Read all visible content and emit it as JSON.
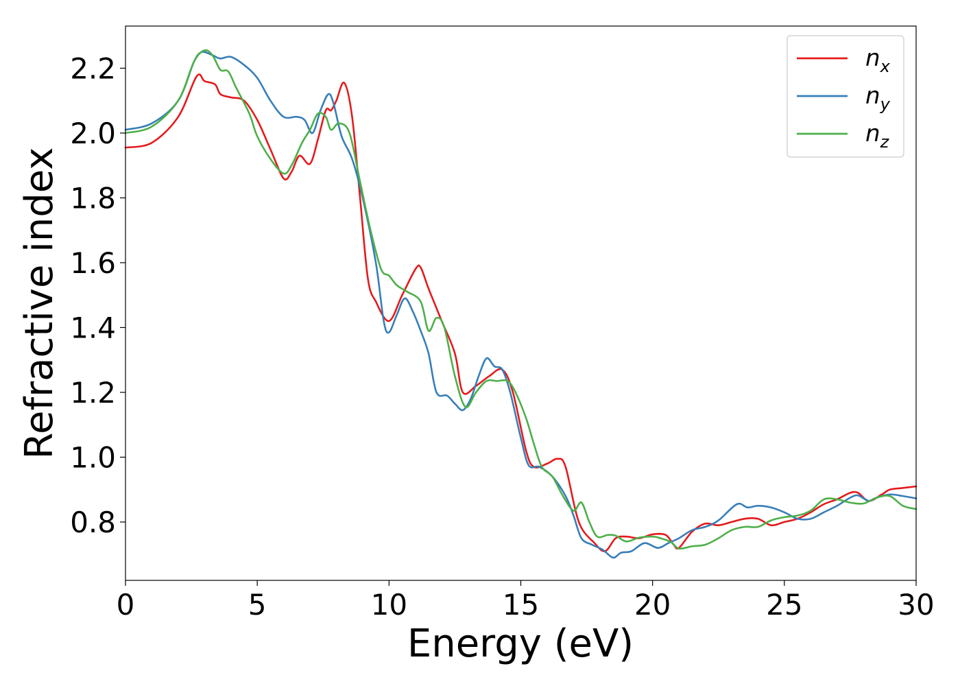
{
  "chart_data": {
    "type": "line",
    "title": "",
    "xlabel": "Energy (eV)",
    "ylabel": "Refractive index",
    "xlim": [
      0,
      30
    ],
    "ylim": [
      0.62,
      2.33
    ],
    "xticks": [
      "0",
      "5",
      "10",
      "15",
      "20",
      "25",
      "30"
    ],
    "yticks": [
      "0.8",
      "1.0",
      "1.2",
      "1.4",
      "1.6",
      "1.8",
      "2.0",
      "2.2"
    ],
    "grid": false,
    "legend_placement": "upper right",
    "series": [
      {
        "name": "n",
        "subscript": "x",
        "color": "#e41a1c",
        "points": [
          [
            0,
            1.955
          ],
          [
            1,
            1.97
          ],
          [
            2,
            2.05
          ],
          [
            2.7,
            2.175
          ],
          [
            3,
            2.16
          ],
          [
            3.4,
            2.15
          ],
          [
            3.6,
            2.12
          ],
          [
            4,
            2.11
          ],
          [
            4.5,
            2.1
          ],
          [
            5,
            2.04
          ],
          [
            5.5,
            1.95
          ],
          [
            6,
            1.86
          ],
          [
            6.3,
            1.88
          ],
          [
            6.6,
            1.93
          ],
          [
            7,
            1.905
          ],
          [
            7.3,
            1.98
          ],
          [
            7.6,
            2.07
          ],
          [
            7.8,
            2.07
          ],
          [
            8,
            2.1
          ],
          [
            8.3,
            2.155
          ],
          [
            8.6,
            2.05
          ],
          [
            8.9,
            1.8
          ],
          [
            9.2,
            1.55
          ],
          [
            9.5,
            1.48
          ],
          [
            10,
            1.42
          ],
          [
            10.5,
            1.5
          ],
          [
            11,
            1.58
          ],
          [
            11.2,
            1.585
          ],
          [
            11.5,
            1.52
          ],
          [
            12,
            1.42
          ],
          [
            12.5,
            1.32
          ],
          [
            12.8,
            1.2
          ],
          [
            13.3,
            1.22
          ],
          [
            13.8,
            1.25
          ],
          [
            14.3,
            1.27
          ],
          [
            14.7,
            1.2
          ],
          [
            15.2,
            1.02
          ],
          [
            15.5,
            0.97
          ],
          [
            16,
            0.98
          ],
          [
            16.4,
            0.995
          ],
          [
            16.7,
            0.97
          ],
          [
            17.2,
            0.8
          ],
          [
            17.8,
            0.735
          ],
          [
            18.2,
            0.71
          ],
          [
            18.6,
            0.75
          ],
          [
            19,
            0.755
          ],
          [
            19.5,
            0.75
          ],
          [
            20,
            0.762
          ],
          [
            20.5,
            0.76
          ],
          [
            20.8,
            0.73
          ],
          [
            21,
            0.72
          ],
          [
            21.5,
            0.77
          ],
          [
            22,
            0.795
          ],
          [
            22.5,
            0.79
          ],
          [
            23,
            0.8
          ],
          [
            23.5,
            0.81
          ],
          [
            24,
            0.81
          ],
          [
            24.5,
            0.79
          ],
          [
            25,
            0.8
          ],
          [
            25.5,
            0.81
          ],
          [
            26,
            0.83
          ],
          [
            26.5,
            0.855
          ],
          [
            27,
            0.87
          ],
          [
            27.5,
            0.89
          ],
          [
            27.8,
            0.89
          ],
          [
            28.2,
            0.865
          ],
          [
            28.7,
            0.885
          ],
          [
            29,
            0.9
          ],
          [
            29.5,
            0.905
          ],
          [
            30,
            0.91
          ]
        ]
      },
      {
        "name": "n",
        "subscript": "y",
        "color": "#377eb8",
        "points": [
          [
            0,
            2.01
          ],
          [
            1,
            2.03
          ],
          [
            2,
            2.1
          ],
          [
            2.6,
            2.22
          ],
          [
            2.9,
            2.25
          ],
          [
            3.3,
            2.24
          ],
          [
            3.6,
            2.23
          ],
          [
            4,
            2.235
          ],
          [
            4.5,
            2.21
          ],
          [
            5,
            2.17
          ],
          [
            5.5,
            2.1
          ],
          [
            6,
            2.05
          ],
          [
            6.5,
            2.05
          ],
          [
            6.8,
            2.04
          ],
          [
            7.1,
            2.0
          ],
          [
            7.4,
            2.07
          ],
          [
            7.7,
            2.12
          ],
          [
            7.9,
            2.09
          ],
          [
            8.2,
            1.99
          ],
          [
            8.6,
            1.92
          ],
          [
            9,
            1.8
          ],
          [
            9.5,
            1.6
          ],
          [
            9.8,
            1.42
          ],
          [
            10,
            1.385
          ],
          [
            10.3,
            1.44
          ],
          [
            10.6,
            1.49
          ],
          [
            10.9,
            1.45
          ],
          [
            11.2,
            1.39
          ],
          [
            11.5,
            1.32
          ],
          [
            11.8,
            1.2
          ],
          [
            12.2,
            1.19
          ],
          [
            12.5,
            1.165
          ],
          [
            12.8,
            1.145
          ],
          [
            13.1,
            1.18
          ],
          [
            13.4,
            1.25
          ],
          [
            13.7,
            1.305
          ],
          [
            14,
            1.28
          ],
          [
            14.3,
            1.27
          ],
          [
            14.6,
            1.2
          ],
          [
            15,
            1.06
          ],
          [
            15.3,
            0.975
          ],
          [
            15.7,
            0.97
          ],
          [
            16.2,
            0.94
          ],
          [
            16.7,
            0.88
          ],
          [
            17,
            0.82
          ],
          [
            17.3,
            0.75
          ],
          [
            17.7,
            0.73
          ],
          [
            18.1,
            0.715
          ],
          [
            18.5,
            0.69
          ],
          [
            18.8,
            0.705
          ],
          [
            19.2,
            0.71
          ],
          [
            19.7,
            0.735
          ],
          [
            20.2,
            0.72
          ],
          [
            20.6,
            0.735
          ],
          [
            21,
            0.75
          ],
          [
            21.5,
            0.775
          ],
          [
            22,
            0.785
          ],
          [
            22.5,
            0.805
          ],
          [
            23.2,
            0.855
          ],
          [
            23.6,
            0.845
          ],
          [
            24,
            0.85
          ],
          [
            24.5,
            0.845
          ],
          [
            25,
            0.83
          ],
          [
            25.5,
            0.81
          ],
          [
            26,
            0.81
          ],
          [
            26.5,
            0.83
          ],
          [
            27,
            0.85
          ],
          [
            27.5,
            0.875
          ],
          [
            27.8,
            0.882
          ],
          [
            28.2,
            0.865
          ],
          [
            28.5,
            0.875
          ],
          [
            29,
            0.885
          ],
          [
            29.5,
            0.88
          ],
          [
            30,
            0.873
          ]
        ]
      },
      {
        "name": "n",
        "subscript": "z",
        "color": "#4daf4a",
        "points": [
          [
            0,
            2.0
          ],
          [
            1,
            2.02
          ],
          [
            2,
            2.1
          ],
          [
            2.6,
            2.22
          ],
          [
            3,
            2.255
          ],
          [
            3.3,
            2.24
          ],
          [
            3.6,
            2.195
          ],
          [
            3.9,
            2.19
          ],
          [
            4.2,
            2.14
          ],
          [
            4.7,
            2.06
          ],
          [
            5,
            1.99
          ],
          [
            5.5,
            1.92
          ],
          [
            6,
            1.875
          ],
          [
            6.3,
            1.9
          ],
          [
            6.7,
            1.97
          ],
          [
            7,
            2.01
          ],
          [
            7.3,
            2.06
          ],
          [
            7.6,
            2.05
          ],
          [
            7.8,
            2.01
          ],
          [
            8.1,
            2.03
          ],
          [
            8.5,
            2.0
          ],
          [
            8.9,
            1.85
          ],
          [
            9.3,
            1.7
          ],
          [
            9.7,
            1.58
          ],
          [
            10,
            1.56
          ],
          [
            10.3,
            1.53
          ],
          [
            10.7,
            1.51
          ],
          [
            11.2,
            1.48
          ],
          [
            11.5,
            1.39
          ],
          [
            11.8,
            1.43
          ],
          [
            12.1,
            1.4
          ],
          [
            12.5,
            1.25
          ],
          [
            12.9,
            1.155
          ],
          [
            13.3,
            1.2
          ],
          [
            13.7,
            1.235
          ],
          [
            14.1,
            1.235
          ],
          [
            14.5,
            1.235
          ],
          [
            14.8,
            1.2
          ],
          [
            15.2,
            1.12
          ],
          [
            15.5,
            1.04
          ],
          [
            15.8,
            0.97
          ],
          [
            16.2,
            0.94
          ],
          [
            16.6,
            0.88
          ],
          [
            17,
            0.835
          ],
          [
            17.3,
            0.86
          ],
          [
            17.6,
            0.8
          ],
          [
            17.9,
            0.755
          ],
          [
            18.3,
            0.76
          ],
          [
            18.6,
            0.758
          ],
          [
            19,
            0.74
          ],
          [
            19.5,
            0.752
          ],
          [
            20,
            0.755
          ],
          [
            20.3,
            0.75
          ],
          [
            20.7,
            0.738
          ],
          [
            21,
            0.718
          ],
          [
            21.5,
            0.725
          ],
          [
            22,
            0.73
          ],
          [
            22.5,
            0.75
          ],
          [
            23,
            0.775
          ],
          [
            23.5,
            0.785
          ],
          [
            24,
            0.785
          ],
          [
            24.5,
            0.805
          ],
          [
            25,
            0.815
          ],
          [
            25.5,
            0.82
          ],
          [
            26,
            0.835
          ],
          [
            26.5,
            0.87
          ],
          [
            27,
            0.87
          ],
          [
            27.5,
            0.86
          ],
          [
            28,
            0.857
          ],
          [
            28.5,
            0.875
          ],
          [
            29,
            0.88
          ],
          [
            29.5,
            0.85
          ],
          [
            30,
            0.84
          ]
        ]
      }
    ]
  }
}
